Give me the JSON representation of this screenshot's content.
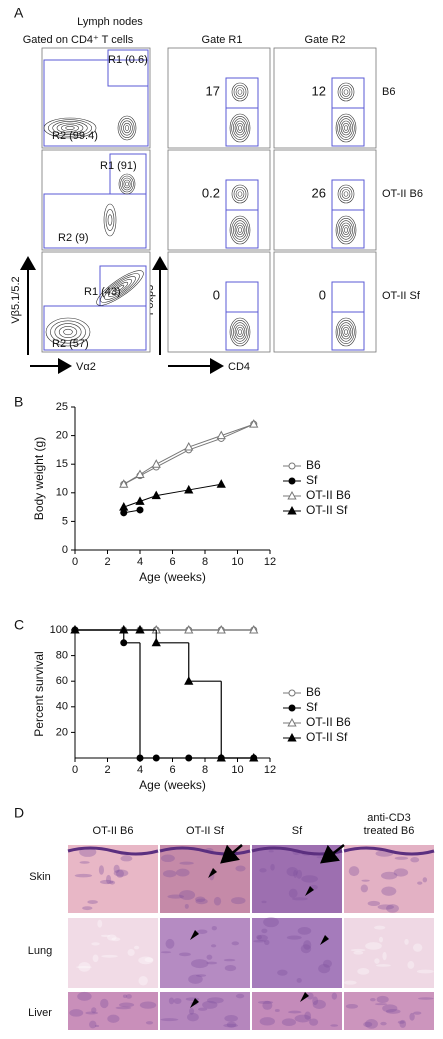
{
  "panel_a": {
    "label": "A",
    "title": "Lymph nodes",
    "left_header": "Gated on CD4⁺ T cells",
    "gate_headers": [
      "Gate R1",
      "Gate R2"
    ],
    "rows": [
      {
        "strain": "B6",
        "r1": "R1 (0.6)",
        "r2": "R2 (99.4)",
        "gate_r1": "17",
        "gate_r2": "12"
      },
      {
        "strain": "OT-II B6",
        "r1": "R1 (91)",
        "r2": "R2 (9)",
        "gate_r1": "0.2",
        "gate_r2": "26"
      },
      {
        "strain": "OT-II Sf",
        "r1": "R1 (43)",
        "r2": "R2 (57)",
        "gate_r1": "0",
        "gate_r2": "0"
      }
    ],
    "axes": {
      "left_y": "Vβ5.1/5.2",
      "left_x": "Vα2",
      "right_y": "Foxp3",
      "right_x": "CD4"
    }
  },
  "chart_data": [
    {
      "type": "line",
      "label": "B",
      "xlabel": "Age (weeks)",
      "ylabel": "Body weight (g)",
      "x": [
        3,
        4,
        5,
        7,
        9,
        11
      ],
      "xlim": [
        0,
        12
      ],
      "xticks": [
        0,
        2,
        4,
        6,
        8,
        10,
        12
      ],
      "ylim": [
        0,
        25
      ],
      "yticks": [
        0,
        5,
        10,
        15,
        20,
        25
      ],
      "legend": "right",
      "series": [
        {
          "name": "B6",
          "color": "#777777",
          "marker": "circle-open",
          "values": [
            11.5,
            13,
            14.5,
            17.5,
            19.5,
            22
          ]
        },
        {
          "name": "Sf",
          "color": "#000000",
          "marker": "circle-filled",
          "values": [
            6.5,
            7,
            null,
            null,
            null,
            null
          ]
        },
        {
          "name": "OT-II B6",
          "color": "#777777",
          "marker": "triangle-open",
          "values": [
            11.5,
            13.2,
            15,
            18,
            20,
            22
          ]
        },
        {
          "name": "OT-II Sf",
          "color": "#000000",
          "marker": "triangle-filled",
          "values": [
            7.5,
            8.5,
            9.5,
            10.5,
            11.5,
            null
          ]
        }
      ]
    },
    {
      "type": "step",
      "label": "C",
      "xlabel": "Age (weeks)",
      "ylabel": "Percent survival",
      "x": [
        0,
        3,
        4,
        5,
        7,
        9,
        11
      ],
      "xlim": [
        0,
        12
      ],
      "xticks": [
        0,
        2,
        4,
        6,
        8,
        10,
        12
      ],
      "ylim": [
        0,
        100
      ],
      "yticks": [
        20,
        40,
        60,
        80,
        100
      ],
      "legend": "right",
      "series": [
        {
          "name": "B6",
          "color": "#777777",
          "marker": "circle-open",
          "values": [
            100,
            100,
            100,
            100,
            100,
            100,
            100
          ]
        },
        {
          "name": "Sf",
          "color": "#000000",
          "marker": "circle-filled",
          "values": [
            100,
            90,
            0,
            0,
            0,
            0,
            0
          ]
        },
        {
          "name": "OT-II B6",
          "color": "#777777",
          "marker": "triangle-open",
          "values": [
            100,
            100,
            100,
            100,
            100,
            100,
            100
          ]
        },
        {
          "name": "OT-II Sf",
          "color": "#000000",
          "marker": "triangle-filled",
          "values": [
            100,
            100,
            100,
            90,
            60,
            0,
            0
          ]
        }
      ]
    }
  ],
  "panel_d": {
    "label": "D",
    "columns": [
      "OT-II B6",
      "OT-II Sf",
      "Sf",
      "anti-CD3",
      "treated B6"
    ],
    "rows": [
      "Skin",
      "Lung",
      "Liver"
    ]
  }
}
